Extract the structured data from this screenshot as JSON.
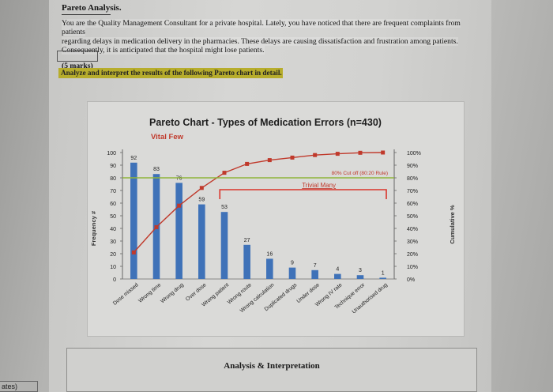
{
  "document": {
    "title": "Pareto Analysis.",
    "paragraph": [
      "You are the Quality Management Consultant for a private hospital. Lately, you have noticed that there are frequent complaints from patients",
      "regarding delays in medication delivery in the pharmacies. These delays are causing dissatisfaction and frustration among patients.",
      "Consequently, it is anticipated that the hospital might lose patients."
    ],
    "marks": "(5 marks)",
    "instruction": "Analyze and interpret the results of the following Pareto chart in detail.",
    "analysis_label": "Analysis & Interpretation",
    "side_fragment": "ates)"
  },
  "chart_data": {
    "type": "bar",
    "title": "Pareto Chart - Types of Medication Errors (n=430)",
    "subtitle": "Vital Few",
    "ylabel": "Frequency #",
    "y2label": "Cumulative %",
    "ylim": [
      0,
      100
    ],
    "y2lim": [
      0,
      100
    ],
    "yticks": [
      "100",
      "90",
      "80",
      "70",
      "60",
      "50",
      "40",
      "30",
      "20",
      "10",
      "0"
    ],
    "y2ticks": [
      "100%",
      "90%",
      "80%",
      "70%",
      "60%",
      "50%",
      "40%",
      "30%",
      "20%",
      "10%",
      "0%"
    ],
    "categories": [
      "Dose missed",
      "Wrong time",
      "Wrong drug",
      "Over dose",
      "Wrong patient",
      "Wrong route",
      "Wrong calculation",
      "Duplicated drugs",
      "Under dose",
      "Wrong IV rate",
      "Technique error",
      "Unauthorised drug"
    ],
    "values": [
      92,
      83,
      76,
      59,
      53,
      27,
      16,
      9,
      7,
      4,
      3,
      1
    ],
    "cumulative_percent": [
      21,
      41,
      58,
      72,
      84,
      91,
      94,
      96,
      98,
      99,
      99.8,
      100
    ],
    "threshold_percent": 80,
    "threshold_label": "80% Cut off (80:20 Rule)",
    "trivial_many_label": "Trivial Many",
    "colors": {
      "bar": "#3f72b8",
      "line": "#c0392b",
      "threshold": "#8fb43a",
      "bracket": "#d9342b"
    }
  }
}
